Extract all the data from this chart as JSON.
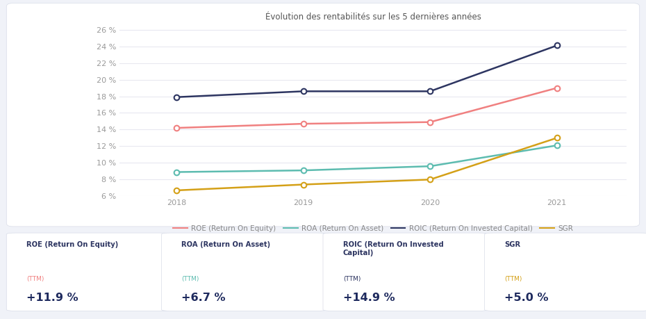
{
  "title": "Évolution des rentabilités sur les 5 dernières années",
  "years": [
    2018,
    2019,
    2020,
    2021
  ],
  "ROE": [
    14.2,
    14.7,
    14.9,
    19.0
  ],
  "ROA": [
    8.9,
    9.1,
    9.6,
    12.1
  ],
  "ROIC": [
    17.9,
    18.6,
    18.6,
    24.1
  ],
  "SGR": [
    6.7,
    7.4,
    8.0,
    13.0
  ],
  "roe_color": "#f08080",
  "roa_color": "#5dbcb0",
  "roic_color": "#2d3561",
  "sgr_color": "#d4a017",
  "ylim_min": 6.0,
  "ylim_max": 26.5,
  "yticks": [
    6.0,
    8.0,
    10.0,
    12.0,
    14.0,
    16.0,
    18.0,
    20.0,
    22.0,
    24.0,
    26.0
  ],
  "bg_color": "#f0f2f8",
  "chart_bg": "#ffffff",
  "grid_color": "#e8e8f0",
  "legend_labels": [
    "ROE (Return On Equity)",
    "ROA (Return On Asset)",
    "ROIC (Return On Invested Capital)",
    "SGR"
  ],
  "card_colors": [
    "#f08080",
    "#5dbcb0",
    "#2d3561",
    "#d4a017"
  ],
  "card_labels": [
    "ROE (Return On Equity)",
    "ROA (Return On Asset)",
    "ROIC (Return On Invested\nCapital)",
    "SGR"
  ],
  "card_ttm": "(TTM)",
  "card_values": [
    "+11.9 %",
    "+6.7 %",
    "+14.9 %",
    "+5.0 %"
  ]
}
